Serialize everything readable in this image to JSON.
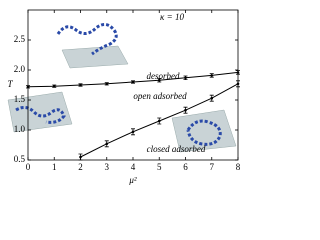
{
  "chart_data": {
    "type": "line",
    "x": [
      0,
      1,
      2,
      3,
      4,
      5,
      6,
      7,
      8
    ],
    "series": [
      {
        "color": "#000000",
        "values": [
          1.72,
          1.73,
          1.75,
          1.77,
          1.8,
          1.83,
          1.87,
          1.91,
          1.96
        ],
        "errors": [
          0.02,
          0.02,
          0.02,
          0.02,
          0.02,
          0.03,
          0.03,
          0.03,
          0.03
        ]
      },
      {
        "color": "#000000",
        "values": [
          null,
          null,
          0.55,
          0.77,
          0.97,
          1.15,
          1.33,
          1.53,
          1.77
        ],
        "errors": [
          null,
          null,
          0.05,
          0.05,
          0.05,
          0.05,
          0.05,
          0.05,
          0.05
        ]
      }
    ],
    "xlabel": "μ²",
    "ylabel": "T",
    "xlim": [
      0,
      8
    ],
    "ylim": [
      0.5,
      3.0
    ],
    "xticks": [
      0,
      1,
      2,
      3,
      4,
      5,
      6,
      7,
      8
    ],
    "yticks": [
      0.5,
      {
        "value": 1,
        "label": "1.0"
      },
      1.5,
      {
        "value": 2,
        "label": "2.0"
      },
      2.5
    ],
    "annotations": [
      "κ = 10",
      "desorbed",
      "open adsorbed",
      "closed adsorbed"
    ]
  }
}
